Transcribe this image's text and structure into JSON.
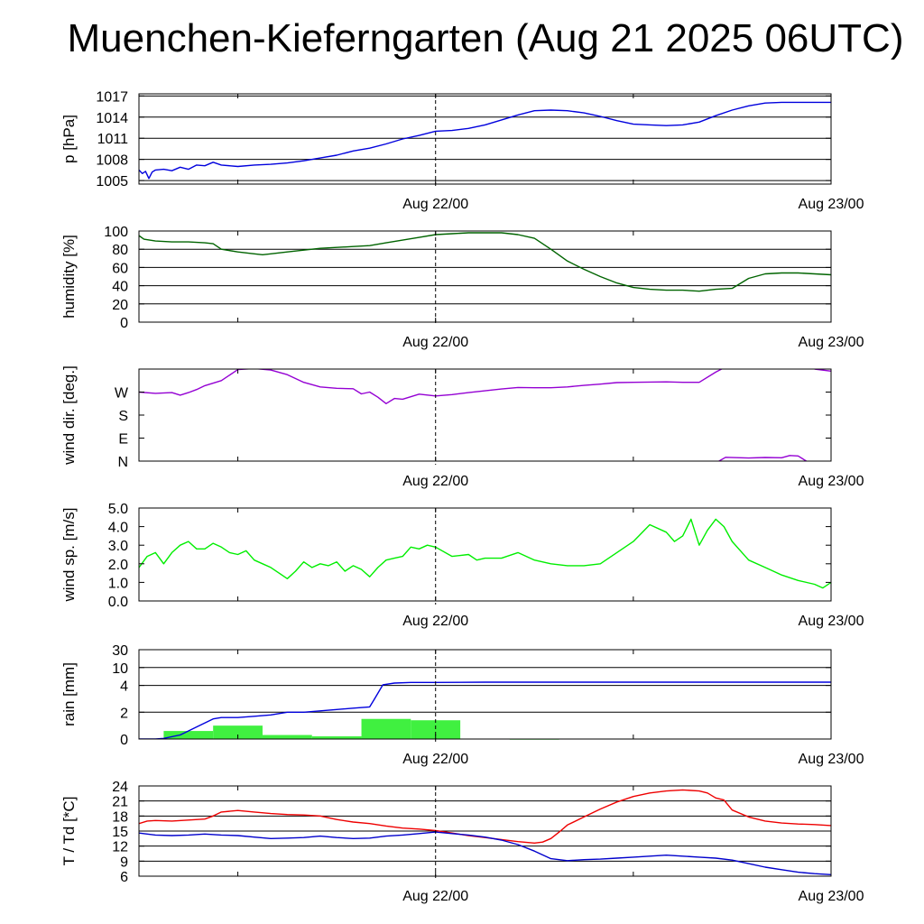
{
  "page_title": "Muenchen-Kieferngarten (Aug 21 2025 06UTC)",
  "colors": {
    "pressure": "#0000dd",
    "humidity": "#006400",
    "wind_dir": "#9400d3",
    "wind_speed": "#00ee00",
    "rain_bar": "#40f040",
    "rain_cum": "#0000dd",
    "temperature": "#ee0000",
    "dewpoint": "#0000cc",
    "grid": "#000000"
  },
  "chart_data": [
    {
      "id": "pressure",
      "type": "line",
      "ylabel": "p [hPa]",
      "ylim": [
        1004.5,
        1017.3
      ],
      "yticks": [
        1005,
        1008,
        1011,
        1014,
        1017
      ],
      "ytick_labels": [
        "1005",
        "1008",
        "1011",
        "1014",
        "1017"
      ],
      "grid_values": [
        1005,
        1008,
        1011,
        1014,
        1017
      ],
      "xlim": [
        0,
        42
      ],
      "xticks": [
        6,
        18,
        30
      ],
      "xtick_labels": [
        {
          "x": 18,
          "label": "Aug 22/00"
        },
        {
          "x": 42,
          "label": "Aug 23/00"
        }
      ],
      "vline": 18,
      "series": [
        {
          "name": "pressure",
          "color": "#0000dd",
          "x": [
            0,
            0.2,
            0.4,
            0.6,
            0.8,
            1.0,
            1.5,
            2.0,
            2.5,
            3.0,
            3.5,
            4.0,
            4.5,
            5.0,
            6.0,
            7.0,
            8.0,
            9.0,
            10.0,
            11.0,
            12.0,
            13.0,
            14.0,
            15.0,
            16.0,
            17.0,
            18.0,
            19.0,
            20.0,
            21.0,
            22.0,
            23.0,
            24.0,
            25.0,
            26.0,
            27.0,
            28.0,
            29.0,
            30.0,
            31.0,
            32.0,
            33.0,
            34.0,
            35.0,
            36.0,
            37.0,
            38.0,
            39.0,
            40.0,
            41.0,
            42.0
          ],
          "values": [
            1006.5,
            1006.0,
            1006.3,
            1005.3,
            1006.2,
            1006.5,
            1006.6,
            1006.4,
            1006.9,
            1006.6,
            1007.2,
            1007.1,
            1007.6,
            1007.2,
            1007.0,
            1007.2,
            1007.3,
            1007.5,
            1007.8,
            1008.2,
            1008.6,
            1009.2,
            1009.6,
            1010.2,
            1010.9,
            1011.4,
            1012.0,
            1012.1,
            1012.4,
            1012.9,
            1013.6,
            1014.3,
            1014.9,
            1015.0,
            1014.9,
            1014.6,
            1014.1,
            1013.5,
            1013.0,
            1012.9,
            1012.8,
            1012.9,
            1013.3,
            1014.2,
            1015.0,
            1015.6,
            1016.0,
            1016.1,
            1016.1,
            1016.1,
            1016.1
          ]
        }
      ]
    },
    {
      "id": "humidity",
      "type": "line",
      "ylabel": "humidity [%]",
      "ylim": [
        0,
        100
      ],
      "yticks": [
        0,
        20,
        40,
        60,
        80,
        100
      ],
      "ytick_labels": [
        "0",
        "20",
        "40",
        "60",
        "80",
        "100"
      ],
      "grid_values": [
        20,
        40,
        60,
        80,
        100
      ],
      "xlim": [
        0,
        42
      ],
      "xticks": [
        6,
        18,
        30
      ],
      "xtick_labels": [
        {
          "x": 18,
          "label": "Aug 22/00"
        },
        {
          "x": 42,
          "label": "Aug 23/00"
        }
      ],
      "vline": 18,
      "series": [
        {
          "name": "humidity",
          "color": "#006400",
          "x": [
            0,
            0.3,
            1.0,
            2.0,
            3.0,
            4.0,
            4.5,
            5.0,
            6.0,
            7.0,
            7.5,
            8.0,
            9.0,
            10.0,
            11.0,
            12.0,
            13.0,
            14.0,
            15.0,
            16.0,
            17.0,
            18.0,
            19.0,
            20.0,
            21.0,
            22.0,
            23.0,
            24.0,
            25.0,
            26.0,
            27.0,
            28.0,
            29.0,
            30.0,
            31.0,
            32.0,
            33.0,
            34.0,
            35.0,
            36.0,
            37.0,
            38.0,
            39.0,
            40.0,
            41.0,
            42.0
          ],
          "values": [
            95,
            91,
            89,
            88,
            88,
            87,
            86,
            80,
            77,
            75,
            74,
            75,
            77,
            79,
            81,
            82,
            83,
            84,
            87,
            90,
            93,
            96,
            97,
            98,
            98,
            98,
            96,
            92,
            80,
            67,
            58,
            50,
            43,
            38,
            36,
            35,
            35,
            34,
            36,
            37,
            48,
            53,
            54,
            54,
            53,
            52
          ]
        }
      ]
    },
    {
      "id": "wind_direction",
      "type": "scatter",
      "ylabel": "wind dir. [deg.]",
      "ylim": [
        0,
        360
      ],
      "yticks": [
        0,
        90,
        180,
        270
      ],
      "ytick_labels": [
        "N",
        "E",
        "S",
        "W"
      ],
      "grid_values": [],
      "xlim": [
        0,
        42
      ],
      "xticks": [
        6,
        18,
        30
      ],
      "xtick_labels": [
        {
          "x": 18,
          "label": "Aug 22/00"
        },
        {
          "x": 42,
          "label": "Aug 23/00"
        }
      ],
      "vline": 18,
      "series": [
        {
          "name": "wind direction (main)",
          "color": "#9400d3",
          "x": [
            0,
            1.0,
            2.0,
            2.5,
            3.0,
            3.5,
            4.0,
            5.0,
            6.0,
            7.0,
            8.0,
            9.0,
            10.0,
            11.0,
            12.0,
            13.0,
            13.5,
            14.0,
            14.5,
            15.0,
            15.5,
            16.0,
            17.0,
            18.0,
            19.0,
            20.0,
            21.0,
            22.0,
            23.0,
            24.0,
            25.0,
            26.0,
            27.0,
            28.0,
            29.0,
            30.0,
            31.0,
            32.0,
            33.0,
            34.0,
            35.0,
            35.5
          ],
          "values": [
            270,
            265,
            268,
            258,
            268,
            280,
            295,
            315,
            358,
            362,
            356,
            338,
            308,
            290,
            285,
            283,
            263,
            270,
            250,
            225,
            245,
            242,
            262,
            255,
            260,
            268,
            275,
            282,
            288,
            287,
            287,
            290,
            296,
            301,
            307,
            308,
            309,
            310,
            308,
            308,
            348,
            365
          ]
        },
        {
          "name": "wind direction (wrap)",
          "color": "#9400d3",
          "x": [
            41.0,
            42.0
          ],
          "values": [
            360,
            352
          ]
        },
        {
          "name": "wind direction (north-low)",
          "color": "#9400d3",
          "x": [
            35.2,
            35.6,
            37.0,
            38.0,
            39.0,
            39.5,
            40.0,
            40.5
          ],
          "values": [
            0,
            15,
            12,
            14,
            13,
            22,
            20,
            0
          ]
        }
      ]
    },
    {
      "id": "wind_speed",
      "type": "line",
      "ylabel": "wind sp. [m/s]",
      "ylim": [
        0,
        5
      ],
      "yticks": [
        0,
        1,
        2,
        3,
        4,
        5
      ],
      "ytick_labels": [
        "0.0",
        "1.0",
        "2.0",
        "3.0",
        "4.0",
        "5.0"
      ],
      "grid_values": [],
      "xlim": [
        0,
        42
      ],
      "xticks": [
        6,
        18,
        30
      ],
      "xtick_labels": [
        {
          "x": 18,
          "label": "Aug 22/00"
        },
        {
          "x": 42,
          "label": "Aug 23/00"
        }
      ],
      "vline": 18,
      "series": [
        {
          "name": "wind speed",
          "color": "#00ee00",
          "x": [
            0,
            0.5,
            1.0,
            1.5,
            2.0,
            2.5,
            3.0,
            3.5,
            4.0,
            4.5,
            5.0,
            5.5,
            6.0,
            6.5,
            7.0,
            7.5,
            8.0,
            9.0,
            9.5,
            10.0,
            10.5,
            11.0,
            11.5,
            12.0,
            12.5,
            13.0,
            13.5,
            14.0,
            14.5,
            15.0,
            15.5,
            16.0,
            16.5,
            17.0,
            17.5,
            18.0,
            19.0,
            20.0,
            20.5,
            21.0,
            22.0,
            23.0,
            24.0,
            25.0,
            26.0,
            27.0,
            28.0,
            29.0,
            30.0,
            31.0,
            32.0,
            32.5,
            33.0,
            33.5,
            34.0,
            34.5,
            35.0,
            35.5,
            36.0,
            37.0,
            38.0,
            39.0,
            40.0,
            41.0,
            41.5,
            42.0
          ],
          "values": [
            1.8,
            2.4,
            2.6,
            2.0,
            2.6,
            3.0,
            3.2,
            2.8,
            2.8,
            3.1,
            2.9,
            2.6,
            2.5,
            2.7,
            2.2,
            2.0,
            1.8,
            1.2,
            1.6,
            2.1,
            1.8,
            2.0,
            1.9,
            2.1,
            1.6,
            1.9,
            1.7,
            1.3,
            1.8,
            2.2,
            2.3,
            2.4,
            2.9,
            2.8,
            3.0,
            2.9,
            2.4,
            2.5,
            2.2,
            2.3,
            2.3,
            2.6,
            2.2,
            2.0,
            1.9,
            1.9,
            2.0,
            2.6,
            3.2,
            4.1,
            3.7,
            3.2,
            3.5,
            4.4,
            3.0,
            3.8,
            4.4,
            4.0,
            3.2,
            2.2,
            1.8,
            1.4,
            1.1,
            0.9,
            0.7,
            1.0
          ]
        }
      ]
    },
    {
      "id": "rain",
      "type": "bar",
      "ylabel": "rain [mm]",
      "ylim": [
        0,
        30
      ],
      "yticks": [
        0,
        2,
        4,
        10,
        30
      ],
      "ytick_labels": [
        "0",
        "2",
        "4",
        "10",
        "30"
      ],
      "grid_values": [
        2,
        4,
        10,
        30
      ],
      "scale": "piecewise",
      "scale_points": [
        [
          0,
          0
        ],
        [
          2,
          0.3
        ],
        [
          4,
          0.6
        ],
        [
          10,
          0.8
        ],
        [
          30,
          1.0
        ]
      ],
      "xlim": [
        0,
        42
      ],
      "xticks": [
        6,
        18,
        30
      ],
      "xtick_labels": [
        {
          "x": 18,
          "label": "Aug 22/00"
        },
        {
          "x": 42,
          "label": "Aug 23/00"
        }
      ],
      "vline": 18,
      "bars": [
        {
          "x0": 1.5,
          "x1": 4.5,
          "value": 0.6
        },
        {
          "x0": 4.5,
          "x1": 7.5,
          "value": 1.0
        },
        {
          "x0": 7.5,
          "x1": 10.5,
          "value": 0.3
        },
        {
          "x0": 10.5,
          "x1": 13.5,
          "value": 0.2
        },
        {
          "x0": 13.5,
          "x1": 16.5,
          "value": 1.5
        },
        {
          "x0": 16.5,
          "x1": 19.5,
          "value": 1.4
        },
        {
          "x0": 22.5,
          "x1": 25.5,
          "value": 0.02
        }
      ],
      "series": [
        {
          "name": "cumulative rain",
          "color": "#0000dd",
          "x": [
            0,
            1.0,
            1.5,
            2.5,
            3.5,
            4.5,
            5.0,
            6.0,
            7.0,
            8.0,
            9.0,
            10.0,
            11.0,
            12.0,
            13.0,
            14.0,
            14.3,
            14.8,
            15.5,
            16.5,
            18.0,
            21.0,
            24.0,
            30.0,
            36.0,
            42.0
          ],
          "values": [
            0,
            0,
            0.05,
            0.3,
            0.9,
            1.5,
            1.6,
            1.6,
            1.7,
            1.8,
            2.0,
            2.0,
            2.1,
            2.2,
            2.3,
            2.4,
            3.0,
            4.2,
            4.8,
            5.0,
            5.0,
            5.1,
            5.1,
            5.1,
            5.1,
            5.1
          ]
        }
      ]
    },
    {
      "id": "temperature",
      "type": "line",
      "ylabel": "T / Td [*C]",
      "ylim": [
        6,
        24
      ],
      "yticks": [
        6,
        9,
        12,
        15,
        18,
        21,
        24
      ],
      "ytick_labels": [
        "6",
        "9",
        "12",
        "15",
        "18",
        "21",
        "24"
      ],
      "grid_values": [
        9,
        12,
        15,
        18,
        21,
        24
      ],
      "xlim": [
        0,
        42
      ],
      "xticks": [
        6,
        18,
        30
      ],
      "xtick_labels": [
        {
          "x": 18,
          "label": "Aug 22/00"
        },
        {
          "x": 42,
          "label": "Aug 23/00"
        }
      ],
      "vline": 18,
      "series": [
        {
          "name": "temperature",
          "color": "#ee0000",
          "x": [
            0,
            0.5,
            1.0,
            2.0,
            3.0,
            4.0,
            4.5,
            5.0,
            6.0,
            7.0,
            8.0,
            9.0,
            10.0,
            11.0,
            12.0,
            13.0,
            14.0,
            15.0,
            16.0,
            17.0,
            18.0,
            19.0,
            20.0,
            21.0,
            22.0,
            23.0,
            24.0,
            24.5,
            25.0,
            25.5,
            26.0,
            27.0,
            28.0,
            29.0,
            30.0,
            31.0,
            32.0,
            33.0,
            34.0,
            34.5,
            35.0,
            35.5,
            36.0,
            37.0,
            38.0,
            39.0,
            40.0,
            41.0,
            42.0
          ],
          "values": [
            16.5,
            17.0,
            17.1,
            17.0,
            17.2,
            17.4,
            18.0,
            18.8,
            19.1,
            18.8,
            18.5,
            18.3,
            18.2,
            18.0,
            17.3,
            16.8,
            16.5,
            16.0,
            15.6,
            15.4,
            15.1,
            14.6,
            14.1,
            13.7,
            13.3,
            12.9,
            12.6,
            12.8,
            13.5,
            14.8,
            16.2,
            17.8,
            19.4,
            20.8,
            21.9,
            22.6,
            23.0,
            23.2,
            23.0,
            22.6,
            21.6,
            21.2,
            19.2,
            17.8,
            17.0,
            16.6,
            16.4,
            16.3,
            16.1
          ]
        },
        {
          "name": "dewpoint",
          "color": "#0000cc",
          "x": [
            0,
            1.0,
            2.0,
            3.0,
            4.0,
            5.0,
            6.0,
            7.0,
            8.0,
            9.0,
            10.0,
            11.0,
            12.0,
            13.0,
            14.0,
            15.0,
            16.0,
            17.0,
            18.0,
            19.0,
            20.0,
            21.0,
            22.0,
            23.0,
            24.0,
            25.0,
            26.0,
            27.0,
            28.0,
            29.0,
            30.0,
            31.0,
            32.0,
            33.0,
            34.0,
            35.0,
            36.0,
            37.0,
            38.0,
            39.0,
            40.0,
            41.0,
            42.0
          ],
          "values": [
            14.6,
            14.2,
            14.1,
            14.2,
            14.4,
            14.2,
            14.1,
            13.8,
            13.5,
            13.6,
            13.7,
            14.0,
            13.7,
            13.5,
            13.6,
            14.0,
            14.2,
            14.5,
            14.8,
            14.5,
            14.2,
            13.8,
            13.2,
            12.3,
            11.0,
            9.5,
            9.1,
            9.3,
            9.4,
            9.6,
            9.8,
            10.0,
            10.2,
            10.0,
            9.8,
            9.6,
            9.2,
            8.5,
            7.8,
            7.3,
            6.8,
            6.5,
            6.3
          ]
        }
      ]
    }
  ]
}
